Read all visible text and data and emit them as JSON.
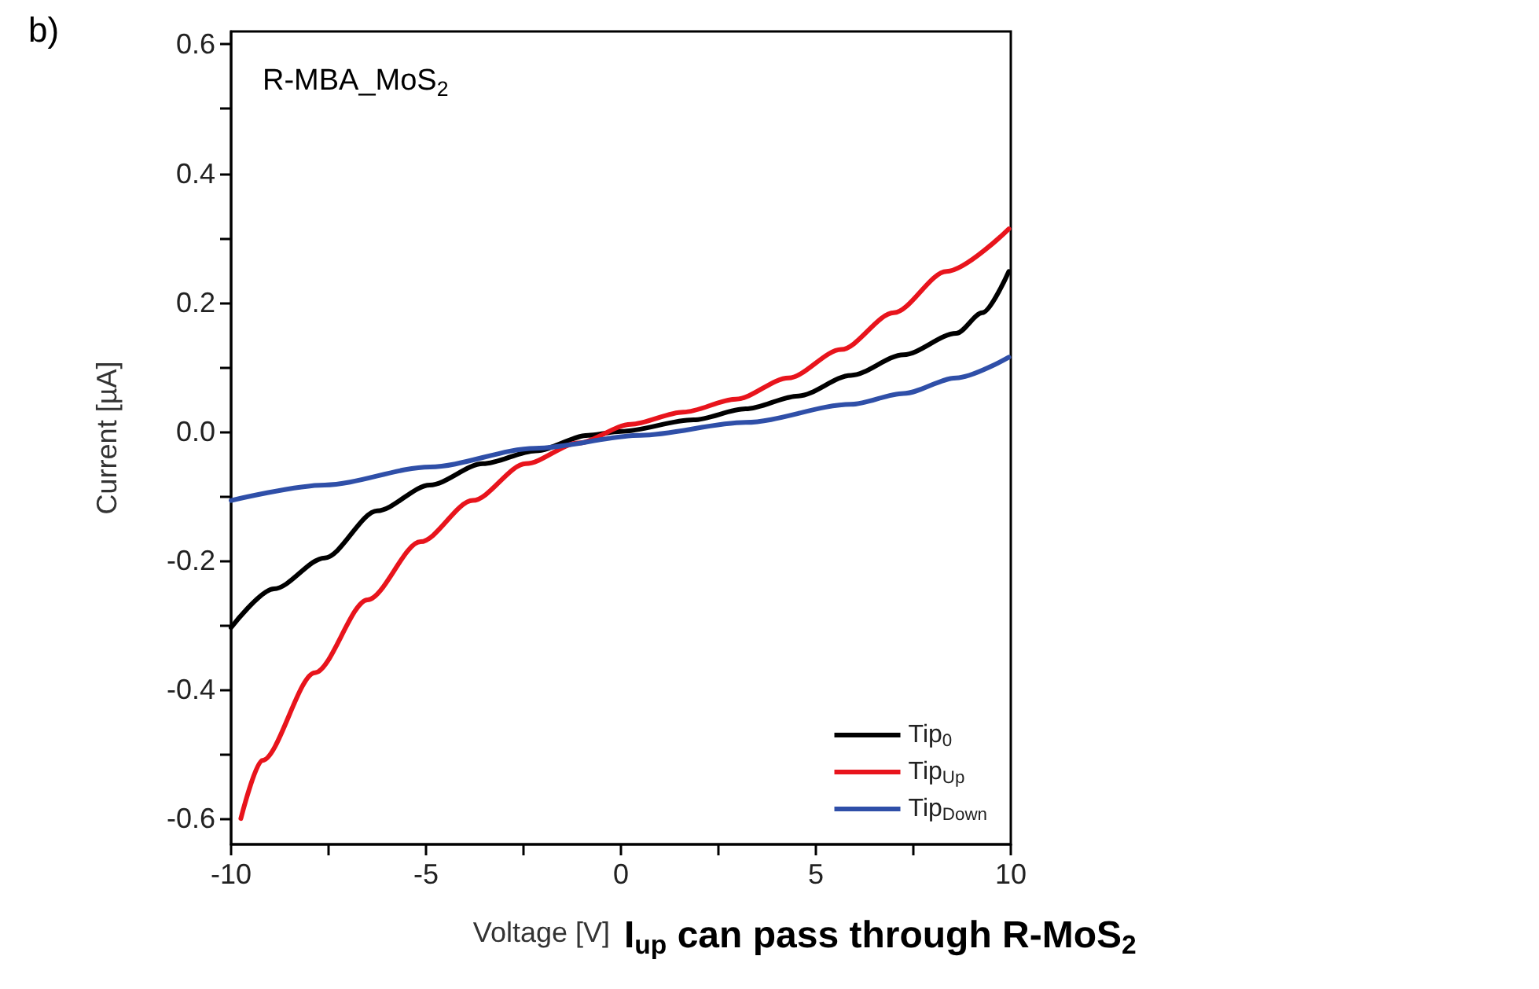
{
  "chart_data": {
    "type": "line",
    "xlabel": "Voltage [V]",
    "ylabel": "Current [µA]",
    "annotations": [
      "b)",
      "R-MBA_MoS$_{2}$",
      "I$_{up}$ can pass through R-MoS$_{2}$"
    ],
    "xlim": [
      -10,
      10
    ],
    "xticks": [
      -10,
      {
        "value": -7.5,
        "label": null
      },
      -5,
      {
        "value": -2.5,
        "label": null
      },
      0,
      {
        "value": 2.5,
        "label": null
      },
      5,
      {
        "value": 7.5,
        "label": null
      },
      10
    ],
    "ylim": [
      -0.64,
      0.62
    ],
    "yticks": [
      -0.6,
      {
        "value": -0.5,
        "label": null
      },
      -0.4,
      {
        "value": -0.3,
        "label": null
      },
      -0.2,
      {
        "value": -0.1,
        "label": null
      },
      {
        "value": 0,
        "label": "0.0"
      },
      {
        "value": 0.1,
        "label": null
      },
      0.2,
      {
        "value": 0.3,
        "label": null
      },
      0.4,
      {
        "value": 0.5,
        "label": null
      },
      0.6
    ],
    "grid": false,
    "legend": "bottom right",
    "line_style": "solid",
    "marker": "none",
    "series": [
      {
        "name": "Tip$_{0}$",
        "color": "#000000",
        "x": [
          -10,
          -8.9,
          -7.6,
          -6.25,
          -4.9,
          -3.54,
          -2.19,
          -0.84,
          0,
          1.86,
          3.2,
          4.55,
          5.9,
          7.25,
          8.6,
          9.27,
          9.95
        ],
        "values": [
          -0.304,
          -0.244,
          -0.196,
          -0.123,
          -0.083,
          -0.05,
          -0.03,
          -0.006,
          0,
          0.018,
          0.035,
          0.055,
          0.087,
          0.119,
          0.152,
          0.184,
          0.248
        ]
      },
      {
        "name": "Tip$_{Up}$",
        "color": "#e8141c",
        "x": [
          -9.75,
          -9.2,
          -7.85,
          -6.5,
          -5.14,
          -3.8,
          -2.44,
          -1.1,
          0.25,
          1.6,
          2.95,
          4.3,
          5.65,
          7.0,
          8.35,
          9.95
        ],
        "values": [
          -0.6,
          -0.51,
          -0.374,
          -0.261,
          -0.171,
          -0.107,
          -0.05,
          -0.018,
          0.011,
          0.03,
          0.05,
          0.083,
          0.127,
          0.184,
          0.248,
          0.314
        ]
      },
      {
        "name": "Tip$_{Down}$",
        "color": "#2f4fa8",
        "x": [
          -10,
          -7.6,
          -4.9,
          -2.2,
          0.5,
          3.2,
          5.9,
          7.25,
          8.6,
          9.95
        ],
        "values": [
          -0.107,
          -0.083,
          -0.055,
          -0.026,
          -0.006,
          0.014,
          0.042,
          0.059,
          0.083,
          0.115
        ]
      }
    ]
  }
}
